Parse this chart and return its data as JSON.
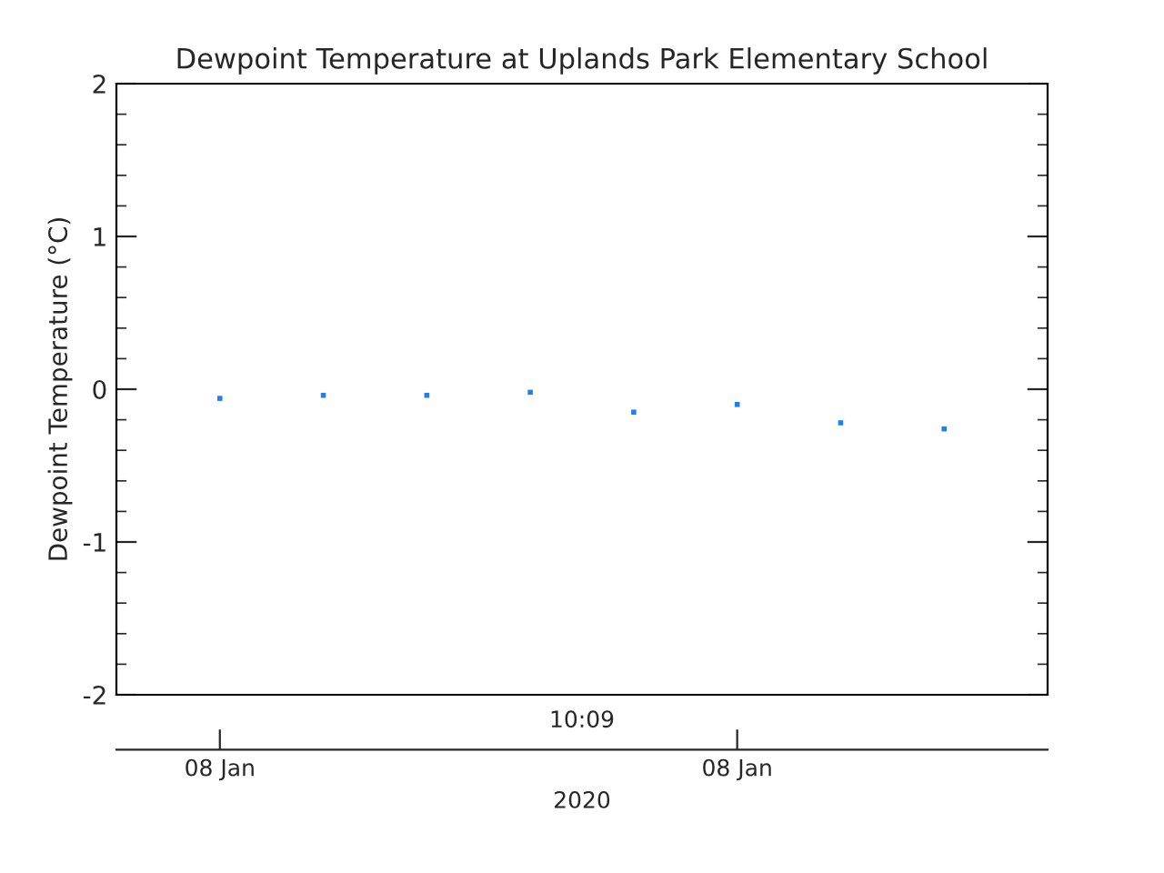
{
  "chart_data": {
    "type": "scatter",
    "title": "Dewpoint Temperature at Uplands Park Elementary School",
    "ylabel": "Dewpoint Temperature (°C)",
    "xlabel": "2020",
    "annotations": [
      "10:09"
    ],
    "categories": [
      "08 Jan",
      null,
      null,
      null,
      null,
      "08 Jan",
      null,
      null
    ],
    "series": [
      {
        "color": "#1e7ff0",
        "values": [
          -0.06,
          -0.04,
          -0.04,
          -0.02,
          -0.15,
          -0.1,
          -0.22,
          -0.26
        ]
      }
    ],
    "ylim": [
      -2,
      2
    ],
    "yticks": [
      -2,
      -1,
      0,
      1,
      2
    ],
    "marker": "square",
    "grid": false,
    "legend": false
  }
}
